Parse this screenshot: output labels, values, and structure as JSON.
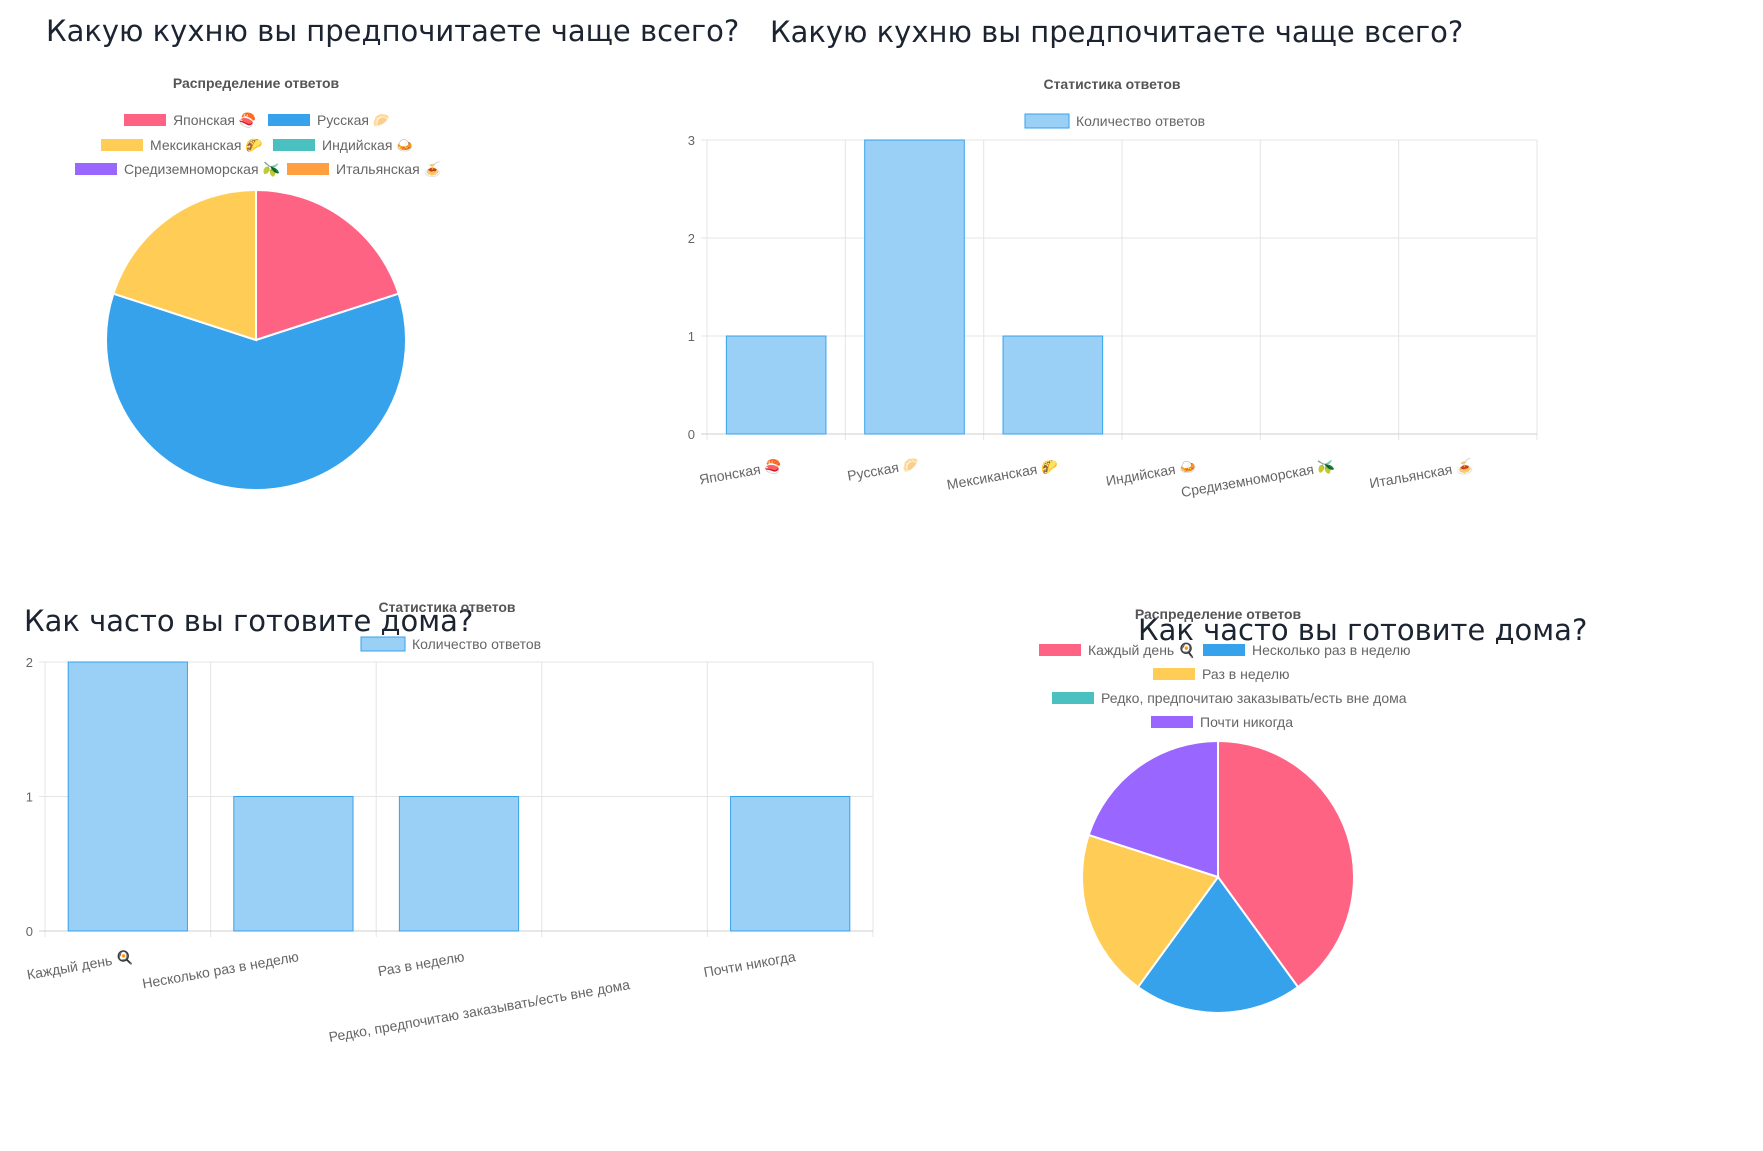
{
  "chart_data": [
    {
      "type": "pie",
      "title": "Какую кухню вы предпочитаете чаще всего?",
      "subtitle": "Распределение ответов",
      "legend_position": "top",
      "categories": [
        "Японская 🍣",
        "Русская 🥟",
        "Мексиканская 🌮",
        "Индийская 🍛",
        "Средиземноморская 🫒",
        "Итальянская 🍝"
      ],
      "values": [
        1,
        3,
        1,
        0,
        0,
        0
      ],
      "colors": [
        "#ff6384",
        "#36a2eb",
        "#ffcd56",
        "#4bc0c0",
        "#9966ff",
        "#ff9f40"
      ]
    },
    {
      "type": "bar",
      "title": "Какую кухню вы предпочитаете чаще всего?",
      "subtitle": "Статистика ответов",
      "legend_position": "top",
      "categories": [
        "Японская 🍣",
        "Русская 🥟",
        "Мексиканская 🌮",
        "Индийская 🍛",
        "Средиземноморская 🫒",
        "Итальянская 🍝"
      ],
      "series": [
        {
          "name": "Количество ответов",
          "values": [
            1,
            3,
            1,
            0,
            0,
            0
          ]
        }
      ],
      "ylim": [
        0,
        3
      ],
      "yticks": [
        0,
        1,
        2,
        3
      ],
      "grid": true,
      "bar_color": "#9ad0f5",
      "bar_border": "#36a2eb"
    },
    {
      "type": "bar",
      "title": "Как часто вы готовите дома?",
      "subtitle": "Статистика ответов",
      "legend_position": "top",
      "categories": [
        "Каждый день 🍳",
        "Несколько раз в неделю",
        "Раз в неделю",
        "Редко, предпочитаю заказывать/есть вне дома",
        "Почти никогда"
      ],
      "series": [
        {
          "name": "Количество ответов",
          "values": [
            2,
            1,
            1,
            0,
            1
          ]
        }
      ],
      "ylim": [
        0,
        2
      ],
      "yticks": [
        0,
        1,
        2
      ],
      "grid": true,
      "bar_color": "#9ad0f5",
      "bar_border": "#36a2eb"
    },
    {
      "type": "pie",
      "title": "Как часто вы готовите дома?",
      "subtitle": "Распределение ответов",
      "legend_position": "top",
      "categories": [
        "Каждый день 🍳",
        "Несколько раз в неделю",
        "Раз в неделю",
        "Редко, предпочитаю заказывать/есть вне дома",
        "Почти никогда"
      ],
      "values": [
        2,
        1,
        1,
        0,
        1
      ],
      "colors": [
        "#ff6384",
        "#36a2eb",
        "#ffcd56",
        "#4bc0c0",
        "#9966ff"
      ]
    }
  ]
}
